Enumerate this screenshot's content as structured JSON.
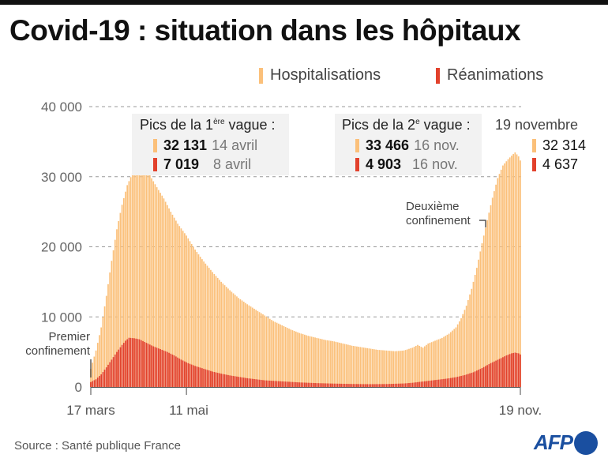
{
  "header": {
    "title": "Covid-19 : situation dans les hôpitaux"
  },
  "legend": {
    "hospitalisations": {
      "label": "Hospitalisations",
      "color": "#fbc07a"
    },
    "reanimations": {
      "label": "Réanimations",
      "color": "#e2412c"
    }
  },
  "peaks": {
    "wave1": {
      "title_prefix": "Pics de la 1",
      "title_sup": "ère",
      "title_suffix": " vague :",
      "hosp_value": "32 131",
      "hosp_date": "14 avril",
      "rea_value": "7 019",
      "rea_date": "8 avril"
    },
    "wave2": {
      "title_prefix": "Pics de la 2",
      "title_sup": "e",
      "title_suffix": " vague :",
      "hosp_value": "33 466",
      "hosp_date": "16 nov.",
      "rea_value": "4 903",
      "rea_date": "16 nov."
    }
  },
  "latest": {
    "date": "19 novembre",
    "hosp_value": "32 314",
    "rea_value": "4 637"
  },
  "annotations": {
    "first_lockdown_line1": "Premier",
    "first_lockdown_line2": "confinement",
    "second_lockdown_line1": "Deuxième",
    "second_lockdown_line2": "confinement"
  },
  "footer": {
    "source": "Source : Santé publique France",
    "logo": "AFP"
  },
  "chart_data": {
    "type": "bar",
    "title": "Covid-19 : situation dans les hôpitaux",
    "xlabel": "",
    "ylabel": "",
    "ylim": [
      0,
      40000
    ],
    "yticks": [
      0,
      10000,
      20000,
      30000,
      40000
    ],
    "ytick_labels": [
      "0",
      "10 000",
      "20 000",
      "30 000",
      "40 000"
    ],
    "x_start": "17 mars",
    "x_end": "19 nov.",
    "xticks": [
      {
        "day": 0,
        "label": "17 mars"
      },
      {
        "day": 55,
        "label": "11 mai"
      },
      {
        "day": 247,
        "label": "19 nov."
      }
    ],
    "annotation_days": {
      "first_lockdown": 0,
      "second_lockdown": 227
    },
    "grid": true,
    "legend_position": "top-right",
    "stacked_overlay": true,
    "keypoints": {
      "hospitalisations": [
        [
          0,
          2600
        ],
        [
          3,
          5200
        ],
        [
          6,
          8500
        ],
        [
          9,
          13000
        ],
        [
          12,
          18000
        ],
        [
          15,
          22500
        ],
        [
          18,
          26000
        ],
        [
          21,
          28800
        ],
        [
          24,
          30500
        ],
        [
          26,
          31500
        ],
        [
          28,
          32131
        ],
        [
          31,
          31300
        ],
        [
          34,
          30200
        ],
        [
          38,
          28500
        ],
        [
          42,
          26900
        ],
        [
          46,
          25000
        ],
        [
          50,
          23300
        ],
        [
          55,
          21600
        ],
        [
          60,
          19600
        ],
        [
          65,
          17900
        ],
        [
          70,
          16400
        ],
        [
          75,
          15000
        ],
        [
          80,
          13800
        ],
        [
          85,
          12700
        ],
        [
          90,
          11800
        ],
        [
          95,
          11000
        ],
        [
          100,
          10200
        ],
        [
          105,
          9400
        ],
        [
          110,
          8800
        ],
        [
          115,
          8200
        ],
        [
          120,
          7700
        ],
        [
          125,
          7300
        ],
        [
          130,
          7000
        ],
        [
          135,
          6700
        ],
        [
          140,
          6500
        ],
        [
          145,
          6200
        ],
        [
          150,
          5900
        ],
        [
          155,
          5700
        ],
        [
          160,
          5500
        ],
        [
          165,
          5300
        ],
        [
          170,
          5200
        ],
        [
          175,
          5100
        ],
        [
          180,
          5200
        ],
        [
          185,
          5600
        ],
        [
          188,
          6000
        ],
        [
          191,
          5600
        ],
        [
          194,
          6200
        ],
        [
          198,
          6600
        ],
        [
          202,
          7000
        ],
        [
          206,
          7600
        ],
        [
          210,
          8500
        ],
        [
          213,
          9800
        ],
        [
          216,
          11600
        ],
        [
          219,
          14000
        ],
        [
          222,
          17000
        ],
        [
          225,
          20500
        ],
        [
          228,
          23800
        ],
        [
          231,
          27000
        ],
        [
          234,
          29800
        ],
        [
          237,
          31600
        ],
        [
          240,
          32500
        ],
        [
          242,
          33000
        ],
        [
          244,
          33466
        ],
        [
          246,
          32900
        ],
        [
          247,
          32314
        ]
      ],
      "reanimations": [
        [
          0,
          700
        ],
        [
          3,
          1100
        ],
        [
          6,
          1800
        ],
        [
          9,
          2800
        ],
        [
          12,
          3900
        ],
        [
          15,
          5000
        ],
        [
          18,
          6000
        ],
        [
          20,
          6600
        ],
        [
          22,
          7019
        ],
        [
          25,
          6950
        ],
        [
          28,
          6800
        ],
        [
          32,
          6300
        ],
        [
          36,
          5800
        ],
        [
          40,
          5400
        ],
        [
          44,
          5000
        ],
        [
          48,
          4500
        ],
        [
          52,
          3900
        ],
        [
          56,
          3400
        ],
        [
          60,
          3000
        ],
        [
          65,
          2600
        ],
        [
          70,
          2200
        ],
        [
          75,
          1900
        ],
        [
          80,
          1650
        ],
        [
          85,
          1450
        ],
        [
          90,
          1250
        ],
        [
          95,
          1100
        ],
        [
          100,
          950
        ],
        [
          110,
          800
        ],
        [
          120,
          650
        ],
        [
          130,
          550
        ],
        [
          140,
          480
        ],
        [
          150,
          430
        ],
        [
          160,
          400
        ],
        [
          170,
          420
        ],
        [
          180,
          500
        ],
        [
          185,
          600
        ],
        [
          190,
          750
        ],
        [
          195,
          900
        ],
        [
          200,
          1050
        ],
        [
          205,
          1200
        ],
        [
          210,
          1400
        ],
        [
          215,
          1700
        ],
        [
          220,
          2100
        ],
        [
          225,
          2700
        ],
        [
          230,
          3400
        ],
        [
          235,
          4000
        ],
        [
          239,
          4500
        ],
        [
          242,
          4800
        ],
        [
          244,
          4903
        ],
        [
          246,
          4800
        ],
        [
          247,
          4637
        ]
      ]
    }
  }
}
